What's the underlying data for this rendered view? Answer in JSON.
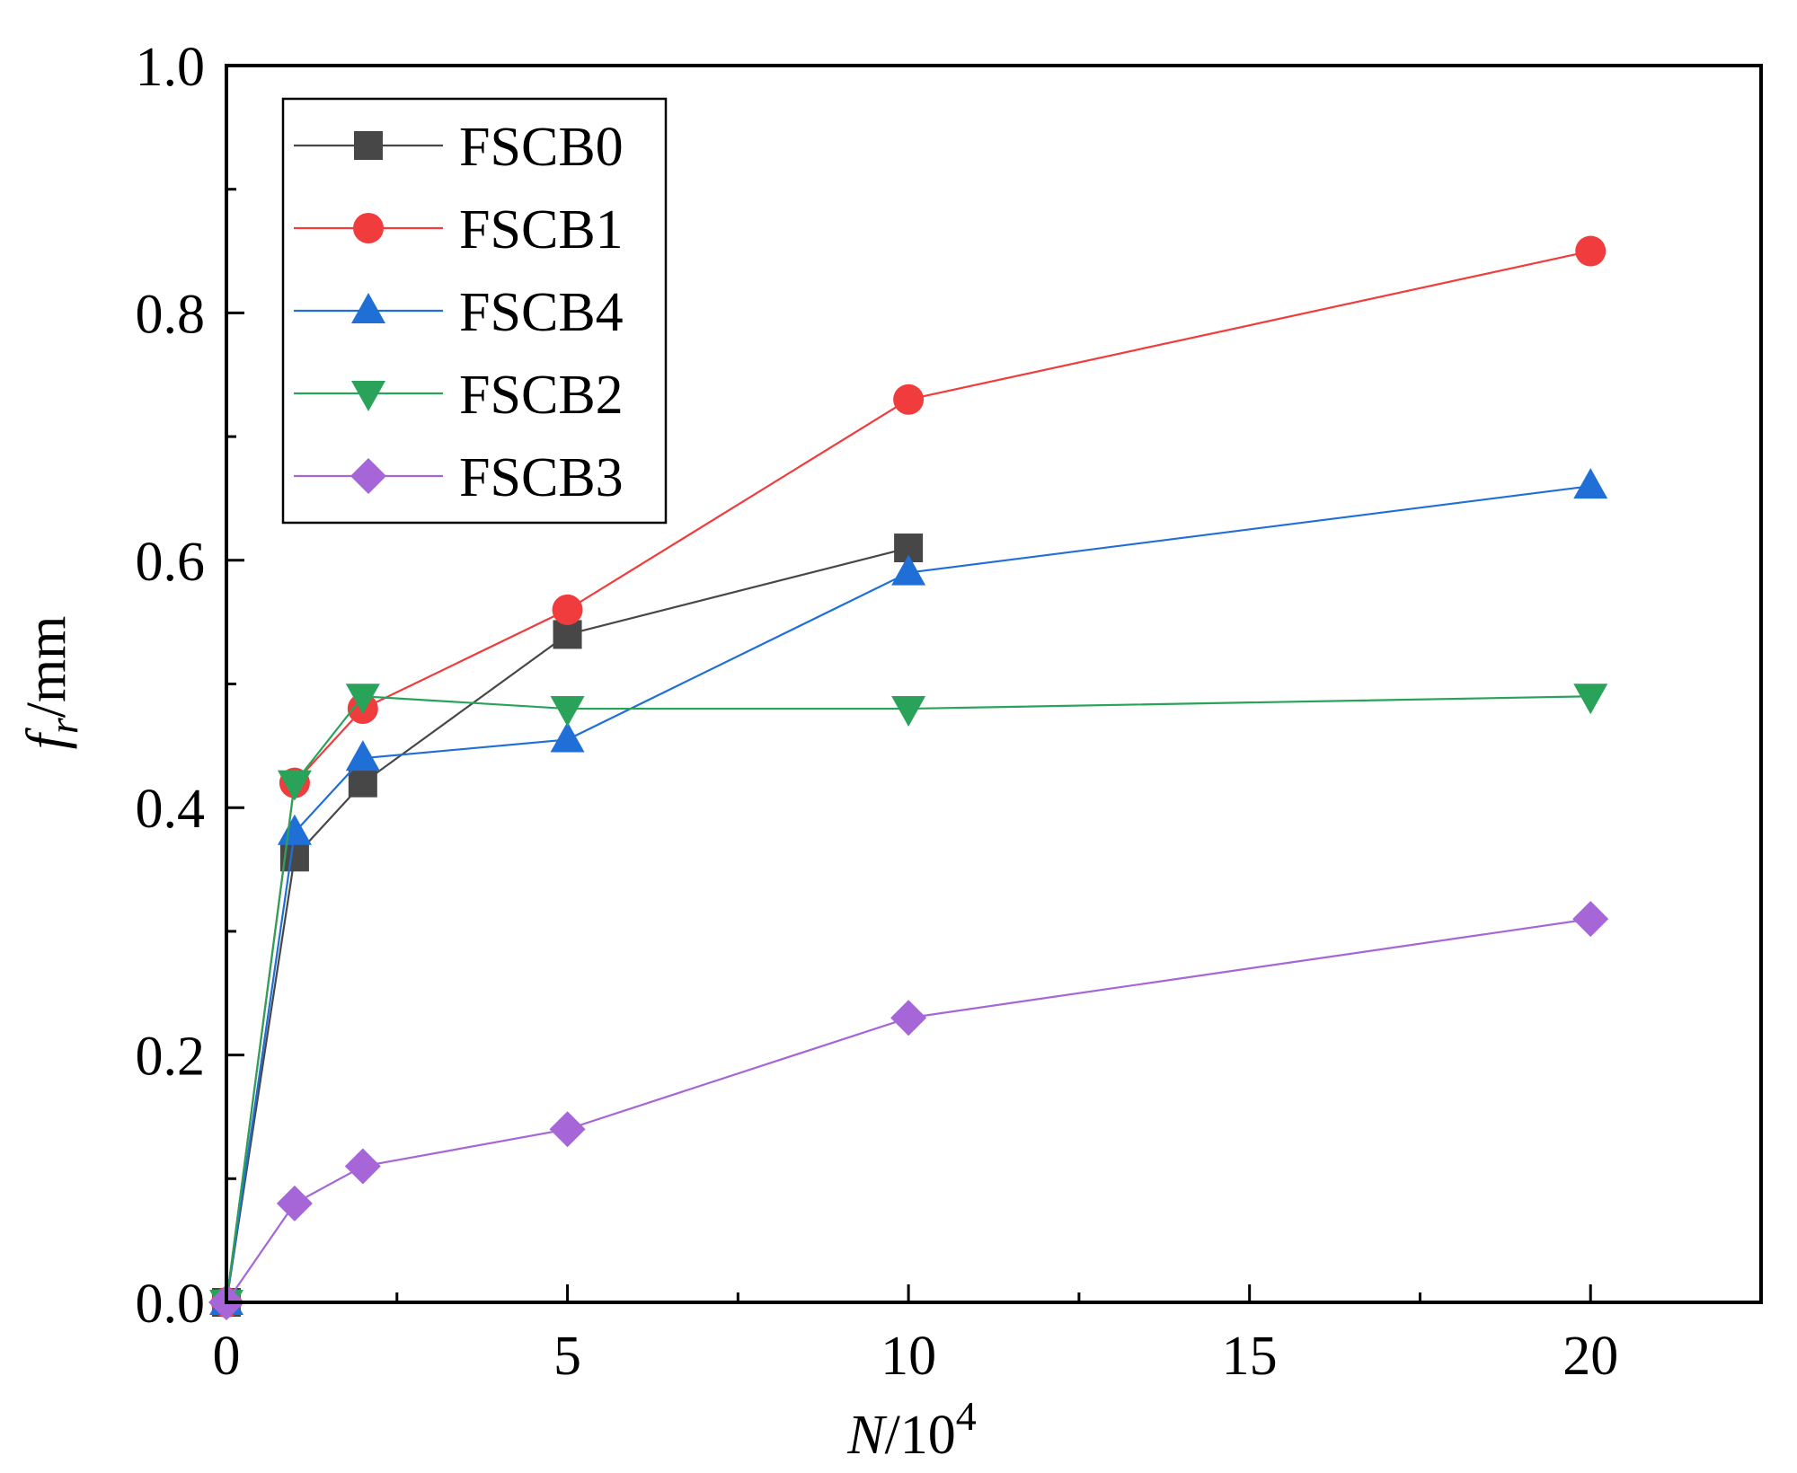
{
  "chart_data": {
    "type": "line",
    "title": "",
    "xlabel": {
      "var": "N",
      "rest": "/10",
      "exp": "4"
    },
    "ylabel": {
      "var": "f",
      "sub": "r",
      "rest": "/mm"
    },
    "xlim": [
      0,
      22.5
    ],
    "ylim": [
      0,
      1.0
    ],
    "x_ticks": [
      0,
      5,
      10,
      15,
      20
    ],
    "x_tick_labels": [
      "0",
      "5",
      "10",
      "15",
      "20"
    ],
    "y_ticks": [
      0.0,
      0.2,
      0.4,
      0.6,
      0.8,
      1.0
    ],
    "y_tick_labels": [
      "0.0",
      "0.2",
      "0.4",
      "0.6",
      "0.8",
      "1.0"
    ],
    "grid": false,
    "legend_position": "top-left",
    "series": [
      {
        "name": "FSCB0",
        "color": "#474747",
        "marker": "square",
        "x": [
          0,
          1,
          2,
          5,
          10
        ],
        "values": [
          0,
          0.36,
          0.42,
          0.54,
          0.61
        ]
      },
      {
        "name": "FSCB1",
        "color": "#f03c3c",
        "marker": "circle",
        "x": [
          0,
          1,
          2,
          5,
          10,
          20
        ],
        "values": [
          0,
          0.42,
          0.48,
          0.56,
          0.73,
          0.85
        ]
      },
      {
        "name": "FSCB4",
        "color": "#1f6fd6",
        "marker": "triangle-up",
        "x": [
          0,
          1,
          2,
          5,
          10,
          20
        ],
        "values": [
          0,
          0.38,
          0.44,
          0.455,
          0.59,
          0.66
        ]
      },
      {
        "name": "FSCB2",
        "color": "#2aa35a",
        "marker": "triangle-down",
        "x": [
          0,
          1,
          2,
          5,
          10,
          20
        ],
        "values": [
          0,
          0.42,
          0.49,
          0.48,
          0.48,
          0.49
        ]
      },
      {
        "name": "FSCB3",
        "color": "#a666d8",
        "marker": "diamond",
        "x": [
          0,
          1,
          2,
          5,
          10,
          20
        ],
        "values": [
          0,
          0.08,
          0.11,
          0.14,
          0.23,
          0.31
        ]
      }
    ]
  }
}
